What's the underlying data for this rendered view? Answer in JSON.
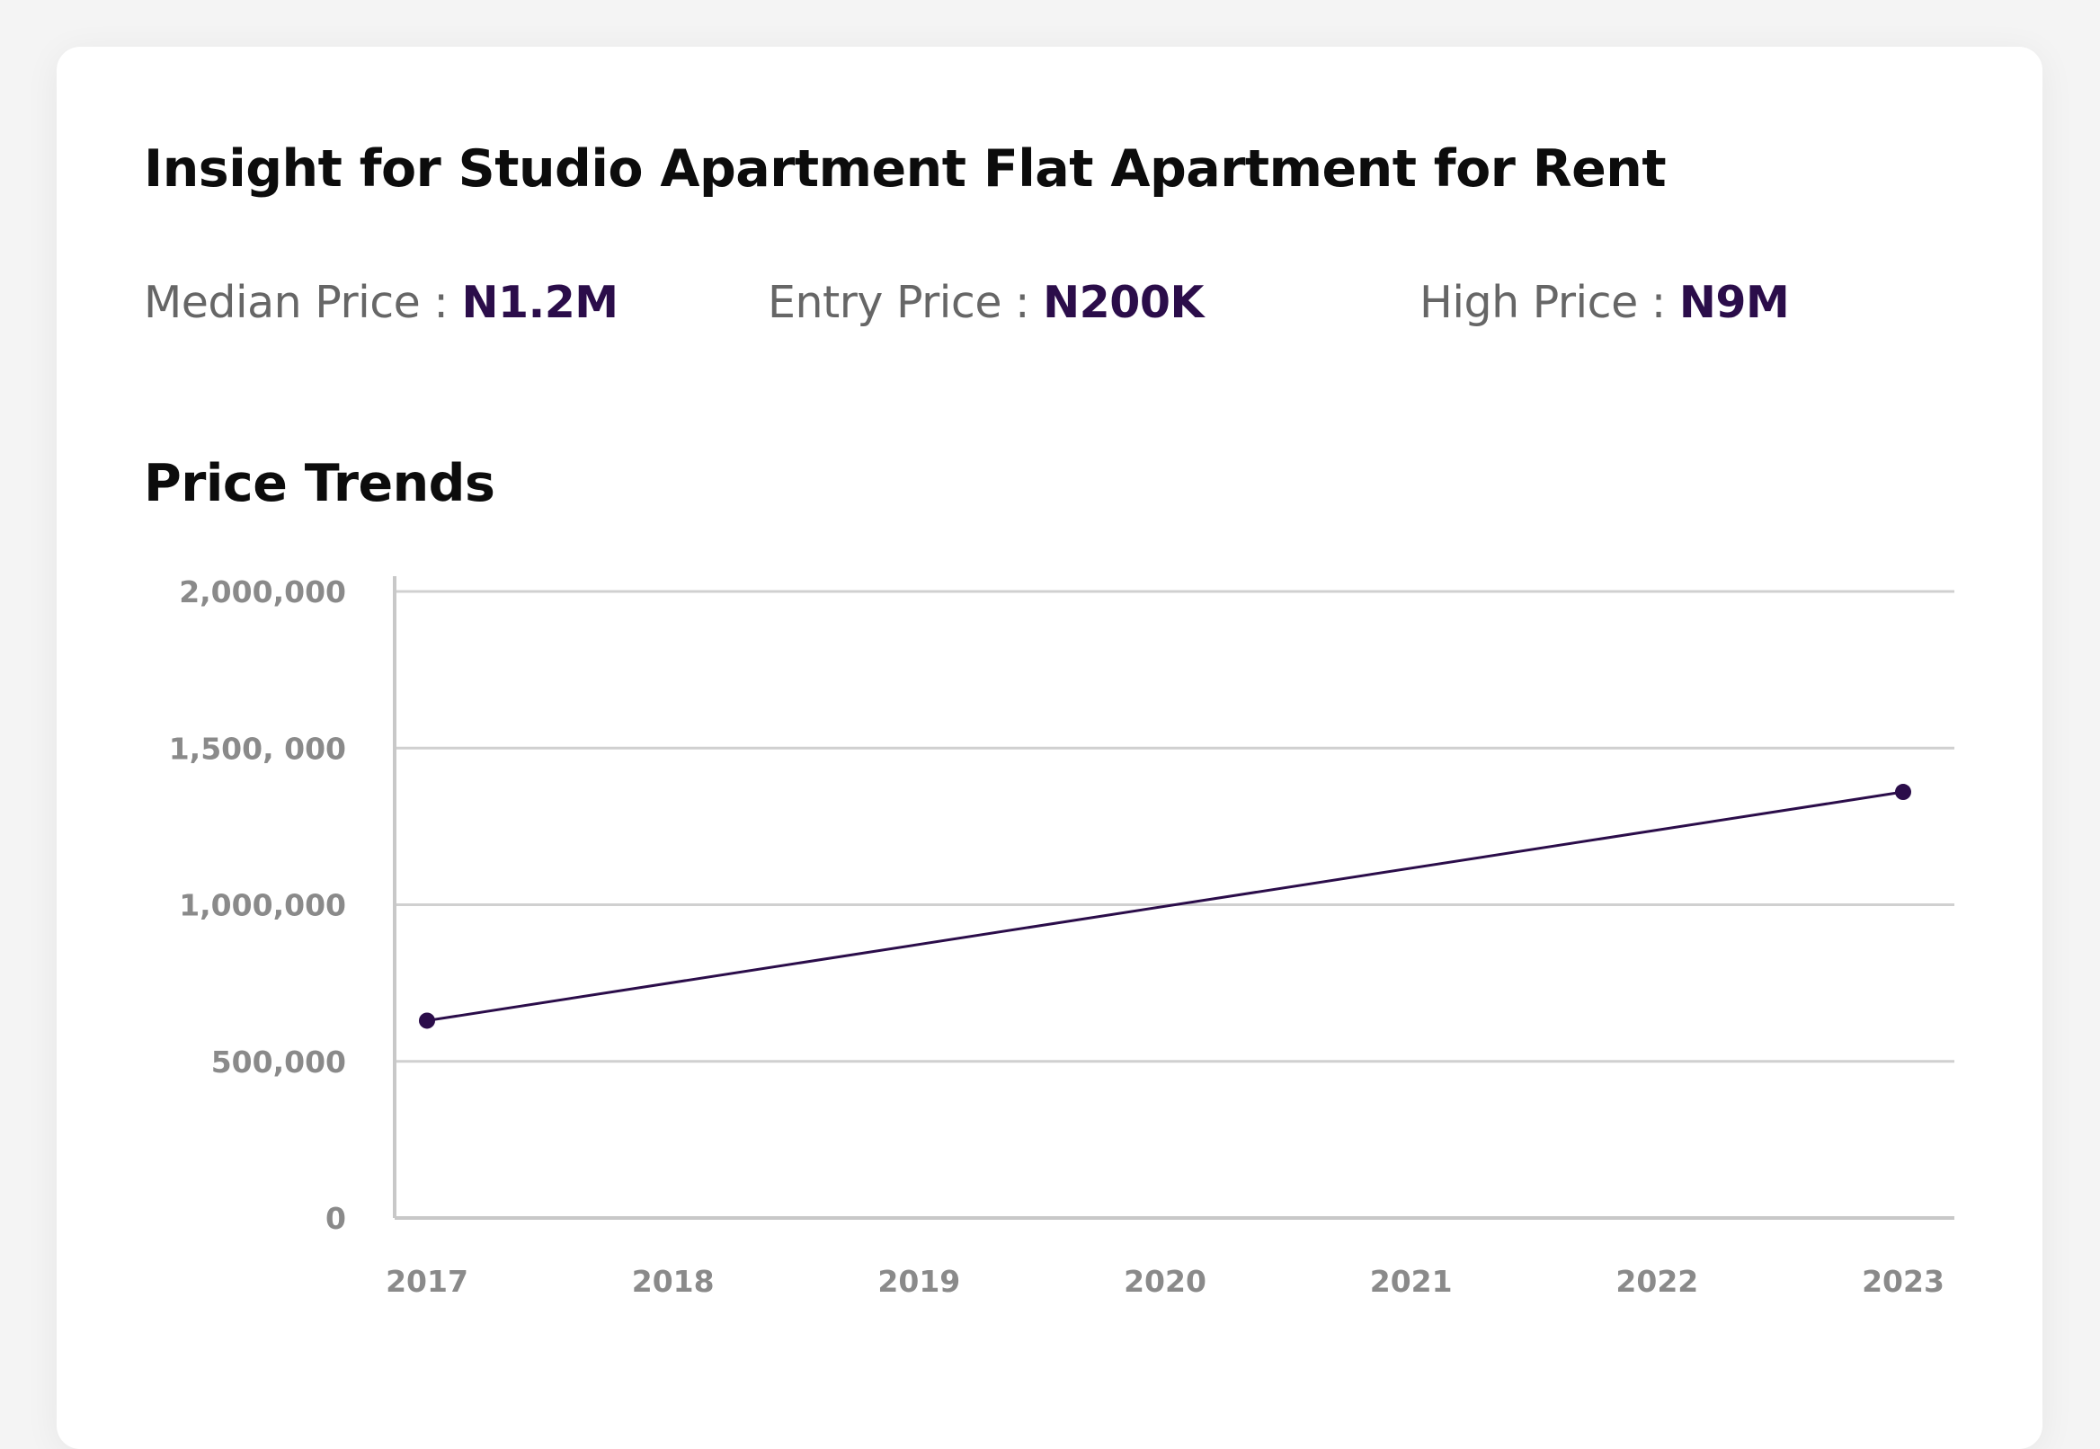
{
  "insight": {
    "title": "Insight for Studio Apartment Flat Apartment for Rent",
    "stats": [
      {
        "label": "Median Price :",
        "value": "N1.2M"
      },
      {
        "label": "Entry Price :",
        "value": "N200K"
      },
      {
        "label": "High Price :",
        "value": "N9M"
      }
    ]
  },
  "section_title": "Price Trends",
  "colors": {
    "accent": "#2b0d4a",
    "grid": "#d0d0d0",
    "axis": "#c8c8c8",
    "tick_text": "#8a8a8a"
  },
  "chart_data": {
    "type": "line",
    "title": "Price Trends",
    "x_categories": [
      "2017",
      "2018",
      "2019",
      "2020",
      "2021",
      "2022",
      "2023"
    ],
    "y_ticks": [
      {
        "value": 0,
        "label": "0"
      },
      {
        "value": 500000,
        "label": "500,000"
      },
      {
        "value": 1000000,
        "label": "1,000,000"
      },
      {
        "value": 1500000,
        "label": "1,500, 000"
      },
      {
        "value": 2000000,
        "label": "2,000,000"
      }
    ],
    "ylim": [
      0,
      2000000
    ],
    "grid": true,
    "series": [
      {
        "points": [
          {
            "x": "2017",
            "y": 630000
          },
          {
            "x": "2023",
            "y": 1360000
          }
        ]
      }
    ]
  }
}
